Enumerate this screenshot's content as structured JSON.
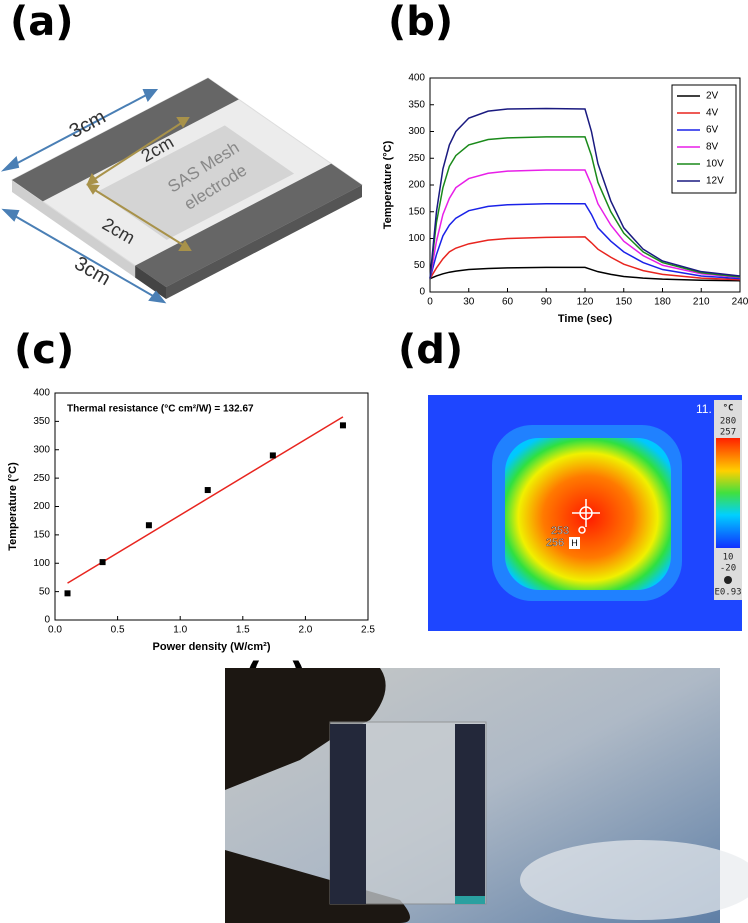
{
  "panel_labels": [
    "(a)",
    "(b)",
    "(c)",
    "(d)",
    "(e)"
  ],
  "diagram": {
    "labels": [
      "3cm",
      "3cm",
      "2cm",
      "2cm",
      "SAS Mesh",
      "electrode"
    ]
  },
  "thermal_image": {
    "corner": "11.",
    "spot_labels": [
      "253",
      "256",
      "H"
    ],
    "scale": {
      "unit": "°C",
      "max": "280",
      "upper": "257",
      "lower": "10",
      "min": "-20",
      "emissivity": "E0.93"
    }
  },
  "chart_data": [
    {
      "type": "line",
      "x_label": "Time (sec)",
      "y_label": "Temperature (°C)",
      "x": [
        0,
        5,
        10,
        15,
        20,
        30,
        45,
        60,
        90,
        120,
        125,
        130,
        140,
        150,
        165,
        180,
        210,
        240
      ],
      "series": [
        {
          "name": "2V",
          "color": "#000000",
          "values": [
            25,
            30,
            34,
            37,
            39,
            42,
            44,
            45,
            46,
            46,
            42,
            38,
            33,
            29,
            26,
            24,
            22,
            21
          ]
        },
        {
          "name": "4V",
          "color": "#e8251f",
          "values": [
            25,
            45,
            62,
            75,
            82,
            90,
            97,
            100,
            102,
            103,
            92,
            80,
            65,
            52,
            40,
            33,
            26,
            23
          ]
        },
        {
          "name": "6V",
          "color": "#1a22e8",
          "values": [
            25,
            70,
            105,
            125,
            138,
            152,
            160,
            163,
            165,
            165,
            145,
            120,
            95,
            75,
            55,
            42,
            30,
            25
          ]
        },
        {
          "name": "8V",
          "color": "#e81fe8",
          "values": [
            25,
            95,
            145,
            175,
            195,
            212,
            222,
            226,
            228,
            228,
            200,
            165,
            125,
            95,
            68,
            50,
            34,
            27
          ]
        },
        {
          "name": "10V",
          "color": "#1a8a1a",
          "values": [
            25,
            130,
            195,
            235,
            255,
            275,
            285,
            288,
            290,
            290,
            255,
            205,
            150,
            110,
            75,
            55,
            36,
            28
          ]
        },
        {
          "name": "12V",
          "color": "#1a1a80",
          "values": [
            25,
            150,
            230,
            275,
            300,
            325,
            338,
            342,
            343,
            342,
            300,
            240,
            170,
            120,
            80,
            58,
            38,
            30
          ]
        }
      ],
      "xlim": [
        0,
        240
      ],
      "xticks": [
        0,
        30,
        60,
        90,
        120,
        150,
        180,
        210,
        240
      ],
      "ylim": [
        0,
        400
      ],
      "yticks": [
        0,
        50,
        100,
        150,
        200,
        250,
        300,
        350,
        400
      ],
      "legend": "upper right"
    },
    {
      "type": "scatter",
      "x_label": "Power density (W/cm²)",
      "y_label": "Temperature (°C)",
      "annotation": "Thermal resistance (°C cm²/W) = 132.67",
      "x": [
        0.1,
        0.38,
        0.75,
        1.22,
        1.74,
        2.3
      ],
      "values": [
        47,
        102,
        167,
        229,
        290,
        343
      ],
      "color": "#000000",
      "fit": {
        "x": [
          0.1,
          2.3
        ],
        "values": [
          65,
          358
        ],
        "color": "#e8251f"
      },
      "xlim": [
        0,
        2.5
      ],
      "xticks": [
        {
          "value": 0,
          "label": "0.0"
        },
        0.5,
        {
          "value": 1,
          "label": "1.0"
        },
        1.5,
        {
          "value": 2,
          "label": "2.0"
        },
        2.5
      ],
      "ylim": [
        0,
        400
      ],
      "yticks": [
        0,
        50,
        100,
        150,
        200,
        250,
        300,
        350,
        400
      ]
    }
  ]
}
